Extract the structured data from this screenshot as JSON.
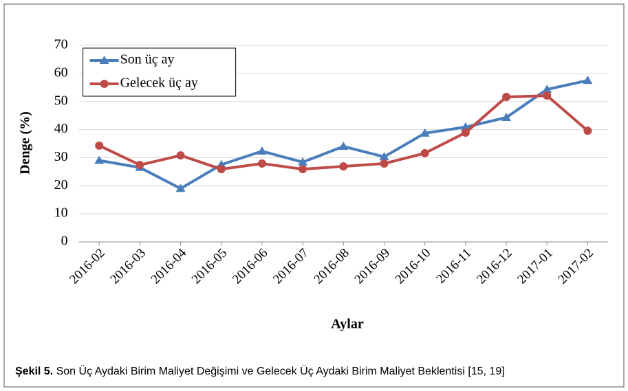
{
  "chart_data": {
    "type": "line",
    "x_label": "Aylar",
    "y_label": "Denge (%)",
    "categories": [
      "2016-02",
      "2016-03",
      "2016-04",
      "2016-05",
      "2016-06",
      "2016-07",
      "2016-08",
      "2016-09",
      "2016-10",
      "2016-11",
      "2016-12",
      "2017-01",
      "2017-02"
    ],
    "series": [
      {
        "name": "Son üç ay",
        "color": "#4a7ebb",
        "marker": "triangle",
        "values": [
          29,
          26.5,
          19,
          27.5,
          32.3,
          28.4,
          34,
          30.3,
          38.7,
          40.9,
          44.3,
          54.3,
          57.5
        ]
      },
      {
        "name": "Gelecek üç ay",
        "color": "#be4b48",
        "marker": "circle",
        "values": [
          34.3,
          27.4,
          30.8,
          25.9,
          27.9,
          25.9,
          26.9,
          27.9,
          31.6,
          38.9,
          51.6,
          52.1,
          39.6
        ]
      }
    ],
    "ylim": [
      0,
      70
    ],
    "yticks": [
      0,
      10,
      20,
      30,
      40,
      50,
      60,
      70
    ],
    "grid": true,
    "legend": "upper-left"
  },
  "caption": {
    "label": "Şekil 5.",
    "text": "Son Üç Aydaki Birim Maliyet Değişimi ve Gelecek Üç Aydaki Birim Maliyet Beklentisi [15, 19]"
  }
}
